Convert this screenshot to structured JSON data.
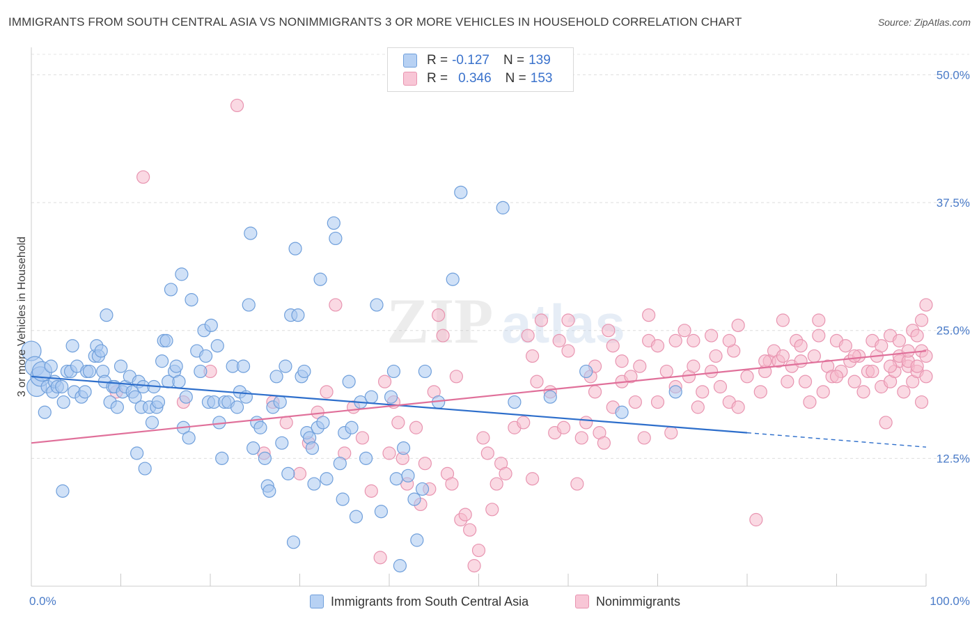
{
  "header": {
    "title": "IMMIGRANTS FROM SOUTH CENTRAL ASIA VS NONIMMIGRANTS 3 OR MORE VEHICLES IN HOUSEHOLD CORRELATION CHART",
    "source": "Source: ZipAtlas.com"
  },
  "legend": {
    "r_label": "R =",
    "n_label": "N =",
    "rows": [
      {
        "r": "-0.127",
        "n": "139"
      },
      {
        "r": "0.346",
        "n": "153"
      }
    ]
  },
  "watermark": {
    "zip": "ZIP",
    "atlas": "atlas"
  },
  "colors": {
    "blue_fill": "#a9c8f0",
    "blue_stroke": "#6f9fdb",
    "blue_line": "#2d6ecb",
    "pink_fill": "#f6b9cc",
    "pink_stroke": "#e894b0",
    "pink_line": "#e0709a",
    "tick": "#4a7bc8"
  },
  "chart_data": {
    "type": "scatter",
    "title": "IMMIGRANTS FROM SOUTH CENTRAL ASIA VS NONIMMIGRANTS 3 OR MORE VEHICLES IN HOUSEHOLD CORRELATION CHART",
    "xlabel": "",
    "ylabel": "3 or more Vehicles in Household",
    "xlim": [
      0,
      100
    ],
    "ylim": [
      0,
      52
    ],
    "x_tick_labels": [
      "0.0%",
      "100.0%"
    ],
    "y_ticks": [
      12.5,
      25.0,
      37.5,
      50.0
    ],
    "y_tick_labels": [
      "12.5%",
      "25.0%",
      "37.5%",
      "50.0%"
    ],
    "grid": true,
    "legend_position": "top-center",
    "series": [
      {
        "name": "Immigrants from South Central Asia",
        "r": -0.127,
        "n": 139,
        "trend": {
          "x0": 0,
          "y0": 20.5,
          "x1": 80,
          "y1": 15.0,
          "dashed_to_x": 100,
          "dashed_to_y": 13.6
        },
        "points": [
          [
            0,
            23
          ],
          [
            0.4,
            21.5
          ],
          [
            0.6,
            19.5
          ],
          [
            1,
            20.5
          ],
          [
            1.2,
            21
          ],
          [
            1.5,
            17
          ],
          [
            1.8,
            19.5
          ],
          [
            2.2,
            21.5
          ],
          [
            2.4,
            19
          ],
          [
            2.6,
            20
          ],
          [
            2.9,
            19.5
          ],
          [
            3.4,
            19.5
          ],
          [
            3.5,
            9.3
          ],
          [
            3.6,
            18
          ],
          [
            4,
            21
          ],
          [
            4.4,
            21
          ],
          [
            4.6,
            23.5
          ],
          [
            4.8,
            19
          ],
          [
            5.1,
            21.5
          ],
          [
            5.6,
            18.5
          ],
          [
            6,
            19
          ],
          [
            6.2,
            21
          ],
          [
            6.5,
            21
          ],
          [
            7.1,
            22.5
          ],
          [
            7.3,
            23.5
          ],
          [
            7.5,
            22.5
          ],
          [
            7.8,
            23
          ],
          [
            8,
            21
          ],
          [
            8.2,
            20
          ],
          [
            8.4,
            26.5
          ],
          [
            8.8,
            18
          ],
          [
            9.1,
            19.5
          ],
          [
            9.3,
            19.5
          ],
          [
            9.6,
            17.5
          ],
          [
            10,
            21.5
          ],
          [
            10.2,
            19
          ],
          [
            10.5,
            19.5
          ],
          [
            11,
            20.5
          ],
          [
            11.3,
            19
          ],
          [
            11.6,
            18.5
          ],
          [
            11.8,
            13
          ],
          [
            12,
            20
          ],
          [
            12.3,
            17.5
          ],
          [
            12.5,
            19.5
          ],
          [
            12.7,
            11.5
          ],
          [
            13.2,
            17.5
          ],
          [
            13.5,
            16
          ],
          [
            13.7,
            19.5
          ],
          [
            14,
            17.5
          ],
          [
            14.2,
            18
          ],
          [
            14.6,
            22
          ],
          [
            14.8,
            24
          ],
          [
            15.1,
            24
          ],
          [
            15.3,
            20
          ],
          [
            15.6,
            29
          ],
          [
            16,
            21
          ],
          [
            16.2,
            21.5
          ],
          [
            16.5,
            20
          ],
          [
            16.8,
            30.5
          ],
          [
            17,
            15.5
          ],
          [
            17.3,
            18.5
          ],
          [
            17.6,
            14.5
          ],
          [
            17.9,
            28
          ],
          [
            18.5,
            23
          ],
          [
            18.9,
            21
          ],
          [
            19.3,
            25
          ],
          [
            19.5,
            22.5
          ],
          [
            19.8,
            18
          ],
          [
            20.1,
            25.5
          ],
          [
            20.4,
            18
          ],
          [
            20.8,
            23.5
          ],
          [
            21,
            16
          ],
          [
            21.3,
            12.5
          ],
          [
            21.6,
            18
          ],
          [
            22,
            18
          ],
          [
            22.5,
            21.5
          ],
          [
            23,
            17.5
          ],
          [
            23.3,
            19
          ],
          [
            23.7,
            21.5
          ],
          [
            24,
            18.5
          ],
          [
            24.3,
            27.5
          ],
          [
            24.5,
            34.5
          ],
          [
            24.8,
            13.5
          ],
          [
            25.2,
            16
          ],
          [
            25.6,
            15.5
          ],
          [
            26.1,
            12.5
          ],
          [
            26.4,
            9.8
          ],
          [
            26.6,
            9.3
          ],
          [
            27,
            17.5
          ],
          [
            27.4,
            20.5
          ],
          [
            27.8,
            18
          ],
          [
            28,
            14
          ],
          [
            28.4,
            21.5
          ],
          [
            28.7,
            11
          ],
          [
            29,
            26.5
          ],
          [
            29.3,
            4.3
          ],
          [
            29.5,
            33
          ],
          [
            29.8,
            26.5
          ],
          [
            30.2,
            20.5
          ],
          [
            30.5,
            21
          ],
          [
            30.8,
            15
          ],
          [
            31.1,
            14.5
          ],
          [
            31.4,
            13.5
          ],
          [
            31.6,
            10
          ],
          [
            32,
            15.5
          ],
          [
            32.3,
            30
          ],
          [
            32.6,
            16
          ],
          [
            33,
            10.5
          ],
          [
            33.8,
            35.5
          ],
          [
            34,
            34
          ],
          [
            34.5,
            12
          ],
          [
            34.8,
            8.5
          ],
          [
            35,
            15
          ],
          [
            35.5,
            20
          ],
          [
            35.8,
            15.5
          ],
          [
            36.3,
            6.8
          ],
          [
            36.8,
            18
          ],
          [
            37.4,
            12.5
          ],
          [
            38,
            18.5
          ],
          [
            38.6,
            27.5
          ],
          [
            39.1,
            7.3
          ],
          [
            40.2,
            18.5
          ],
          [
            40.5,
            21
          ],
          [
            40.8,
            10.5
          ],
          [
            41.2,
            2
          ],
          [
            41.6,
            13.5
          ],
          [
            42.1,
            10.8
          ],
          [
            42.8,
            8.5
          ],
          [
            43.1,
            4.5
          ],
          [
            43.7,
            9.5
          ],
          [
            44,
            21
          ],
          [
            45.5,
            18
          ],
          [
            47.1,
            30
          ],
          [
            48,
            38.5
          ],
          [
            52.7,
            37
          ],
          [
            54,
            18
          ],
          [
            58,
            18.5
          ],
          [
            62,
            21
          ],
          [
            66,
            17
          ],
          [
            72,
            19
          ]
        ]
      },
      {
        "name": "Nonimmigrants",
        "r": 0.346,
        "n": 153,
        "trend": {
          "x0": 0,
          "y0": 14.0,
          "x1": 100,
          "y1": 23.0
        },
        "points": [
          [
            23,
            47
          ],
          [
            12.5,
            40
          ],
          [
            9.5,
            19
          ],
          [
            17,
            18
          ],
          [
            20,
            21
          ],
          [
            26,
            13
          ],
          [
            27,
            18
          ],
          [
            28.5,
            16
          ],
          [
            30,
            11
          ],
          [
            31,
            14
          ],
          [
            32,
            17
          ],
          [
            33,
            19
          ],
          [
            34,
            27.5
          ],
          [
            35,
            13
          ],
          [
            36,
            17.5
          ],
          [
            37,
            14.5
          ],
          [
            38,
            9.3
          ],
          [
            39,
            2.8
          ],
          [
            39.5,
            20
          ],
          [
            40,
            13
          ],
          [
            40.5,
            18
          ],
          [
            41,
            16
          ],
          [
            41.5,
            12.5
          ],
          [
            42,
            10
          ],
          [
            43,
            15.5
          ],
          [
            43.5,
            8
          ],
          [
            44,
            12
          ],
          [
            44.5,
            9.5
          ],
          [
            45,
            19
          ],
          [
            45.5,
            26.5
          ],
          [
            46,
            24.5
          ],
          [
            46.5,
            11
          ],
          [
            47,
            10
          ],
          [
            47.5,
            20.5
          ],
          [
            48,
            6.5
          ],
          [
            48.5,
            7
          ],
          [
            49,
            5.5
          ],
          [
            49.5,
            2
          ],
          [
            50,
            3.5
          ],
          [
            50.5,
            14.5
          ],
          [
            51,
            13
          ],
          [
            51.5,
            7.5
          ],
          [
            52,
            10
          ],
          [
            52.5,
            12
          ],
          [
            53,
            11
          ],
          [
            54,
            15.5
          ],
          [
            55,
            16
          ],
          [
            55.5,
            24.5
          ],
          [
            56,
            10.5
          ],
          [
            56.5,
            20
          ],
          [
            57,
            26
          ],
          [
            58,
            19
          ],
          [
            58.5,
            15
          ],
          [
            59,
            24
          ],
          [
            59.5,
            15.5
          ],
          [
            60,
            26
          ],
          [
            61,
            10
          ],
          [
            61.5,
            14.5
          ],
          [
            62,
            16
          ],
          [
            62.5,
            20.5
          ],
          [
            63,
            19
          ],
          [
            63.5,
            15
          ],
          [
            64,
            14
          ],
          [
            64.5,
            25
          ],
          [
            65,
            17.5
          ],
          [
            66,
            20
          ],
          [
            67,
            20.5
          ],
          [
            67.5,
            18
          ],
          [
            68,
            21.5
          ],
          [
            68.5,
            14.5
          ],
          [
            69,
            24
          ],
          [
            70,
            23.5
          ],
          [
            71,
            21
          ],
          [
            71.5,
            15
          ],
          [
            72,
            19.5
          ],
          [
            73,
            25
          ],
          [
            73.5,
            20.5
          ],
          [
            74,
            24
          ],
          [
            74.5,
            17.5
          ],
          [
            75,
            19
          ],
          [
            76,
            21
          ],
          [
            76.5,
            22.5
          ],
          [
            77,
            19.5
          ],
          [
            78,
            18
          ],
          [
            78.5,
            23
          ],
          [
            79,
            17.5
          ],
          [
            80,
            20.5
          ],
          [
            81,
            6.5
          ],
          [
            81.5,
            19
          ],
          [
            82,
            21
          ],
          [
            82.5,
            22
          ],
          [
            83,
            23
          ],
          [
            83.5,
            22
          ],
          [
            84,
            22.5
          ],
          [
            84.5,
            20
          ],
          [
            85,
            21.5
          ],
          [
            85.5,
            24
          ],
          [
            86,
            22
          ],
          [
            86.5,
            20
          ],
          [
            87,
            18
          ],
          [
            87.5,
            22.5
          ],
          [
            88,
            26
          ],
          [
            88.5,
            19
          ],
          [
            89,
            21.5
          ],
          [
            89.5,
            20.5
          ],
          [
            90,
            24
          ],
          [
            90.5,
            21
          ],
          [
            91,
            23.5
          ],
          [
            91.5,
            22
          ],
          [
            92,
            20
          ],
          [
            92.5,
            22.5
          ],
          [
            93,
            19
          ],
          [
            93.5,
            21
          ],
          [
            94,
            24
          ],
          [
            94.5,
            22.5
          ],
          [
            95,
            19.5
          ],
          [
            95.5,
            16
          ],
          [
            96,
            20
          ],
          [
            96.5,
            21
          ],
          [
            97,
            22
          ],
          [
            97.5,
            19
          ],
          [
            98,
            21.5
          ],
          [
            98.5,
            20
          ],
          [
            99,
            21
          ],
          [
            99.5,
            18
          ],
          [
            100,
            20.5
          ],
          [
            60,
            23
          ],
          [
            63,
            21.5
          ],
          [
            66,
            22
          ],
          [
            70,
            18
          ],
          [
            74,
            21.5
          ],
          [
            78,
            24
          ],
          [
            82,
            22
          ],
          [
            86,
            23.5
          ],
          [
            90,
            20.5
          ],
          [
            92,
            22.5
          ],
          [
            94,
            21
          ],
          [
            95,
            23.5
          ],
          [
            96,
            21.5
          ],
          [
            97,
            22.5
          ],
          [
            98,
            22
          ],
          [
            99,
            21.5
          ],
          [
            99.5,
            23
          ],
          [
            100,
            22.5
          ],
          [
            96,
            24.5
          ],
          [
            97,
            24
          ],
          [
            98,
            23
          ],
          [
            98.5,
            25
          ],
          [
            99,
            24.5
          ],
          [
            99.5,
            26
          ],
          [
            100,
            27.5
          ],
          [
            69,
            26.5
          ],
          [
            79,
            25.5
          ],
          [
            84,
            26
          ],
          [
            88,
            24.5
          ],
          [
            56,
            22.5
          ],
          [
            65,
            23.5
          ],
          [
            72,
            24
          ],
          [
            76,
            24.5
          ]
        ]
      }
    ]
  }
}
